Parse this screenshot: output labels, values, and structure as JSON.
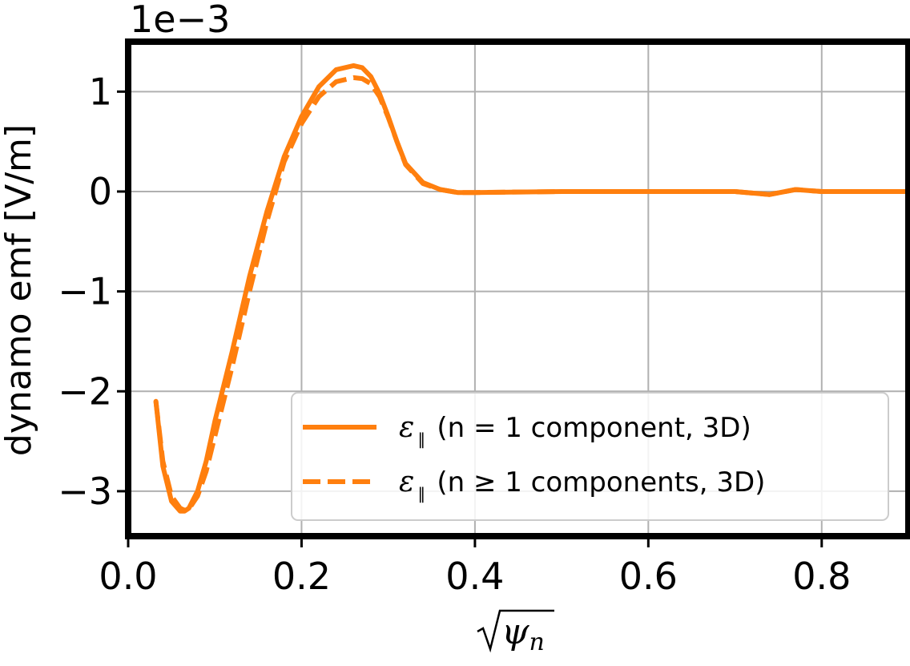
{
  "chart_data": {
    "type": "line",
    "xlabel": "ψn",
    "ylabel": "dynamo emf [V/m]",
    "y_offset_label": "1e−3",
    "y_scale_factor": 0.001,
    "xlim": [
      0.0,
      0.9
    ],
    "ylim": [
      -3.45,
      1.5
    ],
    "x_ticks": [
      0.0,
      0.2,
      0.4,
      0.6,
      0.8
    ],
    "x_tick_labels": [
      "0.0",
      "0.2",
      "0.4",
      "0.6",
      "0.8"
    ],
    "y_ticks": [
      -3,
      -2,
      -1,
      0,
      1
    ],
    "y_tick_labels": [
      "−3",
      "−2",
      "−1",
      "0",
      "1"
    ],
    "grid": true,
    "legend_position": "lower-right",
    "colors": {
      "series": "#ff7f0e",
      "frame": "#000000",
      "grid": "#b0b0b0"
    },
    "series": [
      {
        "name": "(n = 1 component, 3D)",
        "legend_symbol": "ε",
        "legend_subscript": "∥",
        "style": "solid",
        "x": [
          0.032,
          0.04,
          0.05,
          0.06,
          0.065,
          0.07,
          0.08,
          0.09,
          0.1,
          0.12,
          0.14,
          0.16,
          0.18,
          0.2,
          0.22,
          0.24,
          0.26,
          0.27,
          0.28,
          0.29,
          0.3,
          0.31,
          0.32,
          0.34,
          0.36,
          0.38,
          0.4,
          0.5,
          0.6,
          0.7,
          0.74,
          0.77,
          0.8,
          0.9
        ],
        "y": [
          -2.1,
          -2.75,
          -3.1,
          -3.2,
          -3.2,
          -3.17,
          -3.0,
          -2.7,
          -2.3,
          -1.6,
          -0.85,
          -0.2,
          0.35,
          0.75,
          1.05,
          1.22,
          1.26,
          1.24,
          1.15,
          0.98,
          0.75,
          0.5,
          0.28,
          0.09,
          0.02,
          -0.01,
          -0.01,
          0.0,
          0.0,
          0.0,
          -0.03,
          0.02,
          0.0,
          0.0
        ]
      },
      {
        "name": "(n ≥ 1 components, 3D)",
        "legend_symbol": "ε",
        "legend_subscript": "∥",
        "style": "dashed",
        "x": [
          0.032,
          0.04,
          0.05,
          0.06,
          0.065,
          0.07,
          0.08,
          0.09,
          0.1,
          0.12,
          0.14,
          0.16,
          0.18,
          0.2,
          0.22,
          0.24,
          0.26,
          0.27,
          0.28,
          0.29,
          0.3,
          0.31,
          0.32,
          0.34,
          0.36,
          0.38,
          0.4,
          0.5,
          0.6,
          0.7,
          0.74,
          0.77,
          0.8,
          0.9
        ],
        "y": [
          -2.1,
          -2.7,
          -3.05,
          -3.17,
          -3.19,
          -3.18,
          -3.05,
          -2.8,
          -2.45,
          -1.75,
          -1.0,
          -0.3,
          0.3,
          0.68,
          0.95,
          1.1,
          1.14,
          1.13,
          1.08,
          0.95,
          0.74,
          0.5,
          0.27,
          0.08,
          0.02,
          -0.01,
          -0.01,
          0.0,
          0.0,
          0.0,
          -0.03,
          0.02,
          0.0,
          0.0
        ]
      }
    ]
  }
}
